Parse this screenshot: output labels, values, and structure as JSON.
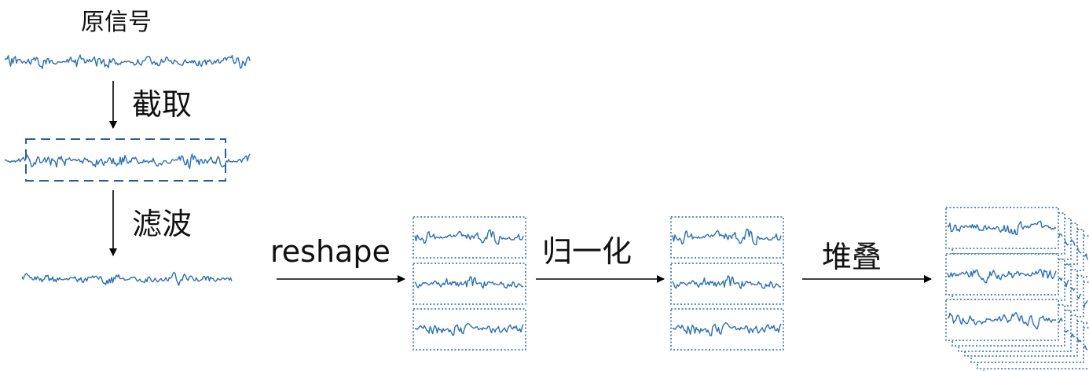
{
  "labels": {
    "original": "原信号",
    "crop": "截取",
    "filter": "滤波",
    "reshape": "reshape",
    "normalize": "归一化",
    "stack": "堆叠"
  },
  "colors": {
    "signal": "#2a70b0",
    "box_border": "#2a6aa6",
    "arrow": "#000000"
  }
}
